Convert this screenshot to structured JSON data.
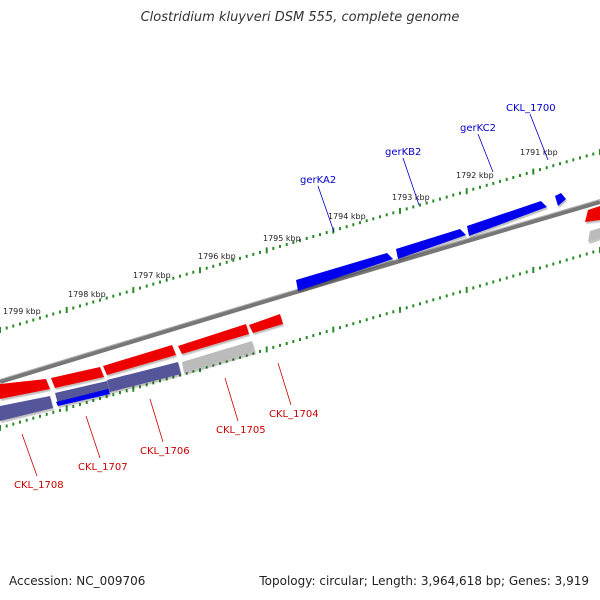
{
  "title": "Clostridium kluyveri DSM 555, complete genome",
  "footer": {
    "accession": "Accession: NC_009706",
    "stats": "Topology: circular; Length: 3,964,618 bp; Genes: 3,919"
  },
  "colors": {
    "forward_gene": "#0000ee",
    "reverse_gene": "#ee0000",
    "pseudo_forward": "#555599",
    "pseudo_reverse": "#bbbbbb",
    "backbone": "#777777",
    "tick": "#2a8a2a",
    "label_forward": "#0000cc",
    "label_reverse": "#cc0000"
  },
  "scale_ticks": [
    {
      "label": "1791 kbp"
    },
    {
      "label": "1792 kbp"
    },
    {
      "label": "1793 kbp"
    },
    {
      "label": "1794 kbp"
    },
    {
      "label": "1795 kbp"
    },
    {
      "label": "1796 kbp"
    },
    {
      "label": "1797 kbp"
    },
    {
      "label": "1798 kbp"
    },
    {
      "label": "1799 kbp"
    }
  ],
  "gene_labels": [
    {
      "label": "CKL_1700",
      "strand": "forward"
    },
    {
      "label": "gerKC2",
      "strand": "forward"
    },
    {
      "label": "gerKB2",
      "strand": "forward"
    },
    {
      "label": "gerKA2",
      "strand": "forward"
    },
    {
      "label": "CKL_1704",
      "strand": "reverse"
    },
    {
      "label": "CKL_1705",
      "strand": "reverse"
    },
    {
      "label": "CKL_1706",
      "strand": "reverse"
    },
    {
      "label": "CKL_1707",
      "strand": "reverse"
    },
    {
      "label": "CKL_1708",
      "strand": "reverse"
    }
  ]
}
